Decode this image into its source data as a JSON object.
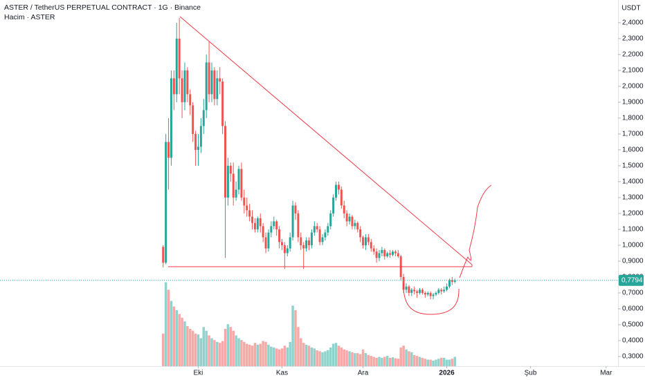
{
  "chart_data": {
    "type": "candlestick",
    "title": "ASTER / TetherUS PERPETUAL CONTRACT · 1G · Binance",
    "subtitle": "Hacim · ASTER",
    "currency": "USDT",
    "last_price_label": "0,7794",
    "up_color": "#26a69a",
    "down_color": "#ef5350",
    "xlim": [
      -73.4,
      155.4
    ],
    "xticks": [
      {
        "value": 0,
        "label": "Eki"
      },
      {
        "value": 31,
        "label": "Kas"
      },
      {
        "value": 61,
        "label": "Ara"
      },
      {
        "value": 92,
        "label": "2026"
      },
      {
        "value": 123,
        "label": "Şub"
      },
      {
        "value": 151,
        "label": "Mar"
      }
    ],
    "ylim": [
      0.239,
      2.543
    ],
    "yticks": [
      {
        "value": 0.3,
        "label": "0,3000"
      },
      {
        "value": 0.4,
        "label": "0,4000"
      },
      {
        "value": 0.5,
        "label": "0,5000"
      },
      {
        "value": 0.6,
        "label": "0,6000"
      },
      {
        "value": 0.7,
        "label": "0,7000"
      },
      {
        "value": 0.8,
        "label": "0,8000"
      },
      {
        "value": 0.9,
        "label": "0,9000"
      },
      {
        "value": 1.0,
        "label": "1,0000"
      },
      {
        "value": 1.1,
        "label": "1,1000"
      },
      {
        "value": 1.2,
        "label": "1,2000"
      },
      {
        "value": 1.3,
        "label": "1,3000"
      },
      {
        "value": 1.4,
        "label": "1,4000"
      },
      {
        "value": 1.5,
        "label": "1,5000"
      },
      {
        "value": 1.6,
        "label": "1,6000"
      },
      {
        "value": 1.7,
        "label": "1,7000"
      },
      {
        "value": 1.8,
        "label": "1,8000"
      },
      {
        "value": 1.9,
        "label": "1,9000"
      },
      {
        "value": 2.0,
        "label": "2,0000"
      },
      {
        "value": 2.1,
        "label": "2,1000"
      },
      {
        "value": 2.2,
        "label": "2,2000"
      },
      {
        "value": 2.3,
        "label": "2,3000"
      },
      {
        "value": 2.4,
        "label": "2,4000"
      }
    ],
    "volume_lim": [
      0,
      1000
    ],
    "x": [
      -13,
      -12,
      -11,
      -10,
      -9,
      -8,
      -7,
      -6,
      -5,
      -4,
      -3,
      -2,
      -1,
      0,
      1,
      2,
      3,
      4,
      5,
      6,
      7,
      8,
      9,
      10,
      11,
      12,
      13,
      14,
      15,
      16,
      17,
      18,
      19,
      20,
      21,
      22,
      23,
      24,
      25,
      26,
      27,
      28,
      29,
      30,
      31,
      32,
      33,
      34,
      35,
      36,
      37,
      38,
      39,
      40,
      41,
      42,
      43,
      44,
      45,
      46,
      47,
      48,
      49,
      50,
      51,
      52,
      53,
      54,
      55,
      56,
      57,
      58,
      59,
      60,
      61,
      62,
      63,
      64,
      65,
      66,
      67,
      68,
      69,
      70,
      71,
      72,
      73,
      74,
      75,
      76,
      77,
      78,
      79,
      80,
      81,
      82,
      83,
      84,
      85,
      86,
      87,
      88,
      89,
      90,
      91,
      92,
      93,
      94,
      95
    ],
    "open": [
      0.99,
      0.89,
      1.65,
      1.55,
      2.05,
      1.95,
      2.3,
      2.05,
      1.9,
      2.1,
      1.95,
      1.88,
      1.7,
      1.6,
      1.62,
      1.75,
      1.85,
      2.15,
      1.95,
      2.1,
      1.92,
      2.05,
      2.03,
      1.75,
      1.3,
      1.5,
      1.45,
      1.3,
      1.35,
      1.48,
      1.3,
      1.25,
      1.22,
      1.18,
      1.14,
      1.1,
      1.17,
      1.12,
      1.05,
      0.98,
      1.08,
      1.12,
      1.15,
      1.1,
      1.02,
      1.0,
      0.95,
      0.98,
      1.05,
      1.25,
      1.2,
      1.05,
      1.0,
      0.98,
      1.03,
      1.0,
      1.08,
      1.12,
      1.1,
      1.02,
      1.05,
      1.08,
      1.12,
      1.2,
      1.3,
      1.38,
      1.35,
      1.25,
      1.2,
      1.15,
      1.18,
      1.12,
      1.14,
      1.1,
      1.05,
      1.0,
      1.05,
      1.02,
      0.98,
      0.96,
      0.92,
      0.95,
      0.97,
      0.93,
      0.95,
      0.94,
      0.96,
      0.95,
      0.93,
      0.8,
      0.72,
      0.74,
      0.7,
      0.72,
      0.71,
      0.7,
      0.72,
      0.7,
      0.69,
      0.7,
      0.68,
      0.69,
      0.7,
      0.72,
      0.71,
      0.72,
      0.74,
      0.78,
      0.77
    ],
    "high": [
      1.0,
      1.7,
      1.8,
      2.1,
      2.1,
      2.4,
      2.43,
      2.1,
      2.15,
      2.12,
      1.98,
      1.9,
      1.72,
      1.7,
      1.8,
      1.92,
      2.2,
      2.28,
      2.15,
      2.12,
      2.1,
      2.12,
      2.05,
      1.78,
      1.55,
      1.52,
      1.52,
      1.4,
      1.5,
      1.52,
      1.35,
      1.3,
      1.26,
      1.22,
      1.17,
      1.18,
      1.2,
      1.14,
      1.08,
      1.1,
      1.15,
      1.18,
      1.16,
      1.12,
      1.04,
      1.02,
      1.0,
      1.08,
      1.28,
      1.27,
      1.22,
      1.08,
      1.02,
      1.05,
      1.05,
      1.1,
      1.15,
      1.14,
      1.12,
      1.07,
      1.1,
      1.14,
      1.22,
      1.32,
      1.4,
      1.4,
      1.37,
      1.28,
      1.22,
      1.2,
      1.19,
      1.16,
      1.15,
      1.12,
      1.06,
      1.07,
      1.07,
      1.04,
      1.0,
      0.98,
      0.97,
      0.99,
      0.98,
      0.96,
      0.97,
      0.97,
      0.97,
      0.97,
      0.94,
      0.82,
      0.76,
      0.75,
      0.73,
      0.74,
      0.72,
      0.73,
      0.73,
      0.71,
      0.71,
      0.71,
      0.7,
      0.71,
      0.73,
      0.73,
      0.74,
      0.76,
      0.79,
      0.8,
      0.79
    ],
    "low": [
      0.86,
      0.88,
      1.35,
      1.5,
      1.85,
      1.9,
      1.95,
      1.8,
      1.85,
      1.9,
      1.82,
      1.65,
      1.5,
      1.5,
      1.58,
      1.7,
      1.8,
      1.9,
      1.9,
      1.88,
      1.88,
      1.95,
      1.7,
      0.92,
      1.25,
      1.4,
      1.25,
      1.28,
      1.32,
      1.28,
      1.2,
      1.18,
      1.15,
      1.1,
      1.08,
      1.08,
      1.08,
      1.02,
      0.95,
      0.96,
      1.05,
      1.1,
      1.06,
      0.98,
      0.97,
      0.85,
      0.93,
      0.96,
      1.03,
      1.16,
      1.02,
      0.97,
      0.85,
      0.96,
      0.97,
      0.98,
      1.06,
      1.08,
      1.0,
      1.0,
      1.03,
      1.06,
      1.1,
      1.18,
      1.28,
      1.32,
      1.23,
      1.17,
      1.12,
      1.13,
      1.1,
      1.1,
      1.08,
      1.02,
      0.98,
      0.97,
      1.0,
      0.96,
      0.94,
      0.89,
      0.9,
      0.93,
      0.91,
      0.92,
      0.92,
      0.93,
      0.93,
      0.92,
      0.78,
      0.7,
      0.7,
      0.68,
      0.68,
      0.69,
      0.67,
      0.69,
      0.69,
      0.67,
      0.68,
      0.66,
      0.66,
      0.68,
      0.69,
      0.69,
      0.7,
      0.71,
      0.73,
      0.75,
      0.76
    ],
    "close": [
      0.89,
      1.65,
      1.55,
      2.05,
      1.95,
      2.3,
      2.05,
      1.9,
      2.1,
      1.95,
      1.88,
      1.7,
      1.6,
      1.62,
      1.75,
      1.85,
      2.15,
      1.95,
      2.1,
      1.92,
      2.05,
      2.03,
      1.75,
      1.3,
      1.5,
      1.45,
      1.3,
      1.35,
      1.48,
      1.3,
      1.25,
      1.22,
      1.18,
      1.14,
      1.1,
      1.17,
      1.12,
      1.05,
      0.98,
      1.08,
      1.12,
      1.15,
      1.1,
      1.02,
      1.0,
      0.95,
      0.98,
      1.05,
      1.25,
      1.2,
      1.05,
      1.0,
      0.98,
      1.03,
      1.0,
      1.08,
      1.12,
      1.1,
      1.02,
      1.05,
      1.08,
      1.12,
      1.2,
      1.3,
      1.38,
      1.35,
      1.25,
      1.2,
      1.15,
      1.18,
      1.12,
      1.14,
      1.1,
      1.05,
      1.0,
      1.05,
      1.02,
      0.98,
      0.96,
      0.92,
      0.95,
      0.97,
      0.93,
      0.95,
      0.94,
      0.96,
      0.95,
      0.93,
      0.8,
      0.72,
      0.74,
      0.7,
      0.72,
      0.71,
      0.7,
      0.72,
      0.7,
      0.69,
      0.7,
      0.68,
      0.69,
      0.7,
      0.72,
      0.71,
      0.72,
      0.74,
      0.78,
      0.77,
      0.7794
    ],
    "volume": [
      350,
      900,
      820,
      700,
      640,
      600,
      560,
      520,
      480,
      430,
      400,
      380,
      350,
      340,
      300,
      420,
      380,
      330,
      300,
      280,
      260,
      250,
      270,
      400,
      450,
      420,
      380,
      330,
      300,
      280,
      260,
      240,
      230,
      220,
      250,
      230,
      240,
      270,
      260,
      230,
      210,
      200,
      190,
      180,
      190,
      220,
      200,
      260,
      650,
      600,
      420,
      300,
      250,
      230,
      220,
      200,
      190,
      170,
      160,
      150,
      160,
      170,
      200,
      240,
      250,
      220,
      200,
      180,
      170,
      160,
      150,
      140,
      140,
      130,
      180,
      140,
      120,
      110,
      100,
      90,
      100,
      90,
      100,
      110,
      90,
      95,
      85,
      80,
      200,
      220,
      180,
      160,
      150,
      120,
      110,
      100,
      90,
      80,
      70,
      70,
      60,
      70,
      80,
      90,
      90,
      70,
      70,
      80,
      100
    ]
  }
}
